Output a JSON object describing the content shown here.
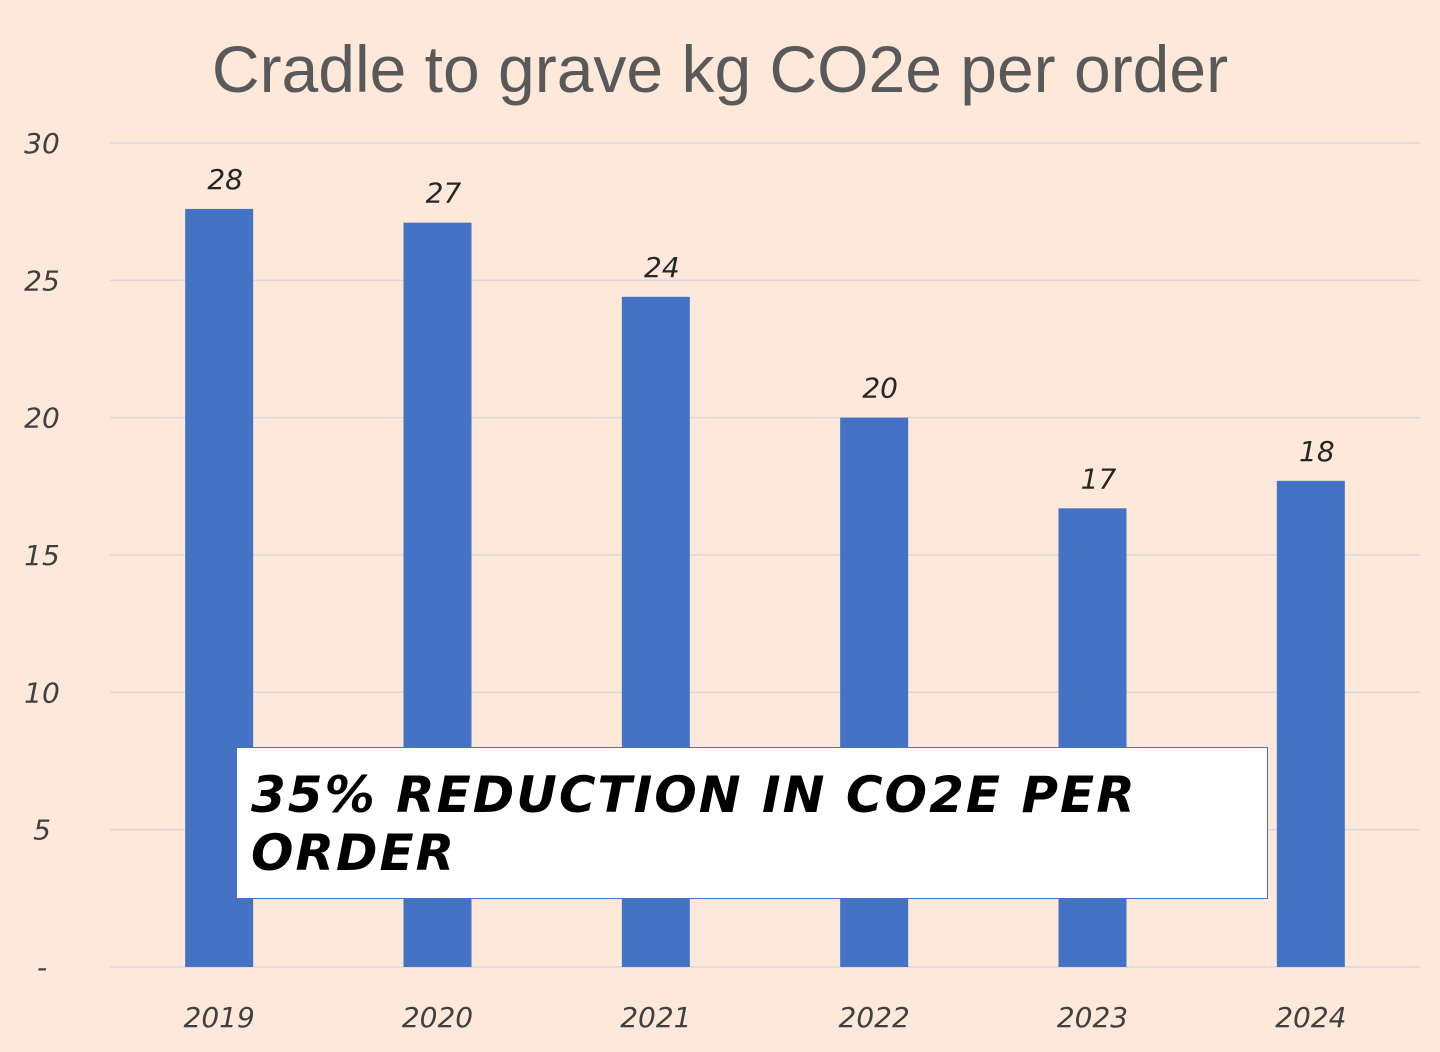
{
  "chart_data": {
    "type": "bar",
    "title": "Cradle to grave kg CO2e per order",
    "xlabel": "",
    "ylabel": "",
    "categories": [
      "2019",
      "2020",
      "2021",
      "2022",
      "2023",
      "2024"
    ],
    "values": [
      27.6,
      27.1,
      24.4,
      20.0,
      16.7,
      17.7
    ],
    "data_labels": [
      "28",
      "27",
      "24",
      "20",
      "17",
      "18"
    ],
    "ylim": [
      0,
      30
    ],
    "yticks": [
      0,
      5,
      10,
      15,
      20,
      25,
      30
    ],
    "ytick_labels": [
      "-",
      "5",
      "10",
      "15",
      "20",
      "25",
      "30"
    ],
    "grid": true,
    "legend": "none",
    "bar_color": "#4472c4",
    "annotation": "35% REDUCTION IN CO2E PER ORDER"
  }
}
